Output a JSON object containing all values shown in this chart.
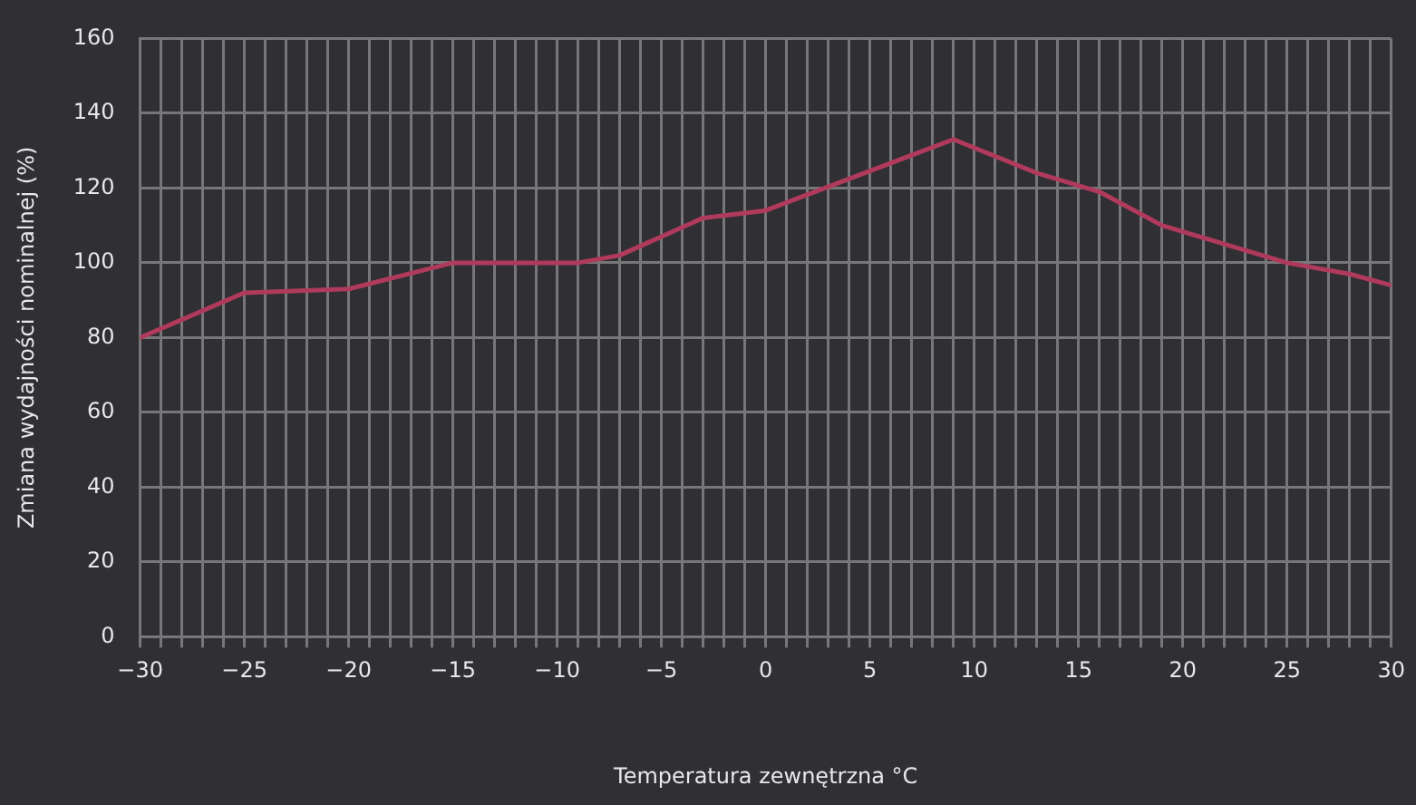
{
  "chart_data": {
    "type": "line",
    "xlabel": "Temperatura zewnętrzna °C",
    "ylabel": "Zmiana wydajności nominalnej (%)",
    "x": [
      -30,
      -25,
      -20,
      -15,
      -9,
      -7,
      -3,
      0,
      9,
      13,
      16,
      19,
      25,
      28,
      30
    ],
    "series": [
      {
        "color": "#b03a5b",
        "values": [
          80,
          92,
          93,
          100,
          100,
          102,
          112,
          114,
          133,
          124,
          119,
          110,
          100,
          97,
          94
        ]
      }
    ],
    "xlim": [
      -30,
      30
    ],
    "xticks": [
      -30,
      {
        "value": -29,
        "label": null
      },
      {
        "value": -28,
        "label": null
      },
      {
        "value": -27,
        "label": null
      },
      {
        "value": -26,
        "label": null
      },
      -25,
      {
        "value": -24,
        "label": null
      },
      {
        "value": -23,
        "label": null
      },
      {
        "value": -22,
        "label": null
      },
      {
        "value": -21,
        "label": null
      },
      -20,
      {
        "value": -19,
        "label": null
      },
      {
        "value": -18,
        "label": null
      },
      {
        "value": -17,
        "label": null
      },
      {
        "value": -16,
        "label": null
      },
      -15,
      {
        "value": -14,
        "label": null
      },
      {
        "value": -13,
        "label": null
      },
      {
        "value": -12,
        "label": null
      },
      {
        "value": -11,
        "label": null
      },
      -10,
      {
        "value": -9,
        "label": null
      },
      {
        "value": -8,
        "label": null
      },
      {
        "value": -7,
        "label": null
      },
      {
        "value": -6,
        "label": null
      },
      -5,
      {
        "value": -4,
        "label": null
      },
      {
        "value": -3,
        "label": null
      },
      {
        "value": -2,
        "label": null
      },
      {
        "value": -1,
        "label": null
      },
      0,
      {
        "value": 1,
        "label": null
      },
      {
        "value": 2,
        "label": null
      },
      {
        "value": 3,
        "label": null
      },
      {
        "value": 4,
        "label": null
      },
      5,
      {
        "value": 6,
        "label": null
      },
      {
        "value": 7,
        "label": null
      },
      {
        "value": 8,
        "label": null
      },
      {
        "value": 9,
        "label": null
      },
      10,
      {
        "value": 11,
        "label": null
      },
      {
        "value": 12,
        "label": null
      },
      {
        "value": 13,
        "label": null
      },
      {
        "value": 14,
        "label": null
      },
      15,
      {
        "value": 16,
        "label": null
      },
      {
        "value": 17,
        "label": null
      },
      {
        "value": 18,
        "label": null
      },
      {
        "value": 19,
        "label": null
      },
      20,
      {
        "value": 21,
        "label": null
      },
      {
        "value": 22,
        "label": null
      },
      {
        "value": 23,
        "label": null
      },
      {
        "value": 24,
        "label": null
      },
      25,
      {
        "value": 26,
        "label": null
      },
      {
        "value": 27,
        "label": null
      },
      {
        "value": 28,
        "label": null
      },
      {
        "value": 29,
        "label": null
      },
      30
    ],
    "ylim": [
      0,
      160
    ],
    "yticks": [
      0,
      20,
      40,
      60,
      80,
      100,
      120,
      140,
      160
    ],
    "grid": true,
    "marker": "none",
    "line_style": "solid"
  }
}
